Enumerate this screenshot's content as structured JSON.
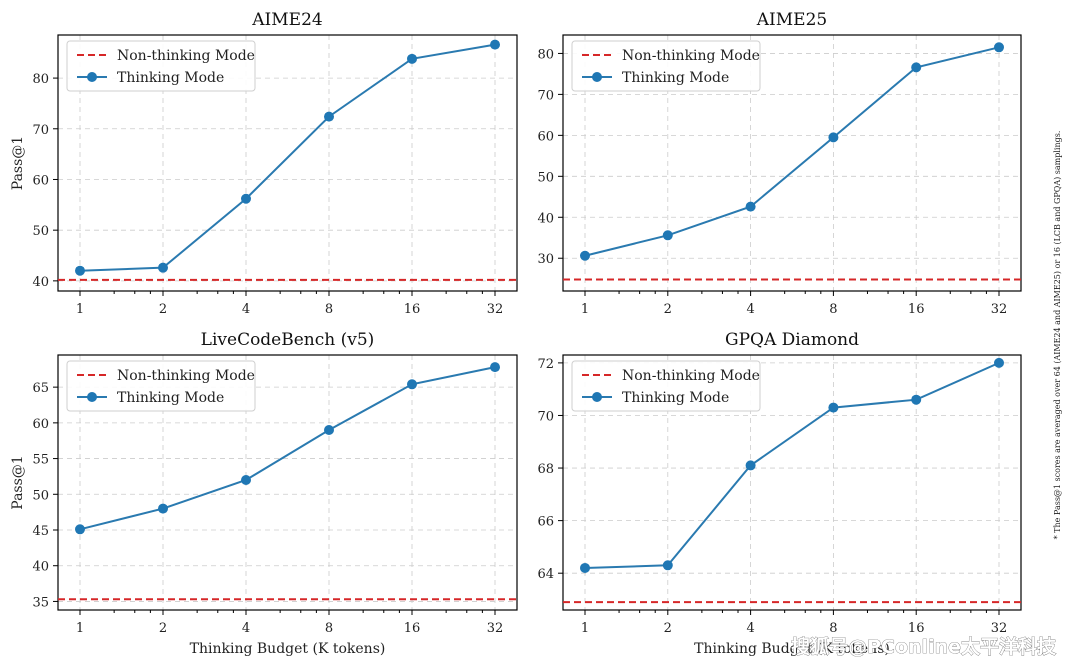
{
  "figure_note": "* The Pass@1 scores are averaged over 64 (AIME24 and AIME25) or 16 (LCB and GPQA) samplings.",
  "watermark": "搜狐号@PConline太平洋科技",
  "colors": {
    "thinking": "#1f77b4",
    "non_thinking": "#d62728"
  },
  "chart_data": [
    {
      "type": "line",
      "title": "AIME24",
      "xlabel": "",
      "ylabel": "Pass@1",
      "x_scale": "log2",
      "x": [
        1,
        2,
        4,
        8,
        16,
        32
      ],
      "x_ticks": [
        "1",
        "2",
        "4",
        "8",
        "16",
        "32"
      ],
      "ylim": [
        38,
        88.5
      ],
      "y_ticks": [
        40,
        50,
        60,
        70,
        80
      ],
      "grid": true,
      "legend_position": "top-left",
      "series": [
        {
          "name": "Thinking Mode",
          "values": [
            42.0,
            42.6,
            56.2,
            72.4,
            83.8,
            86.6
          ]
        }
      ],
      "baseline": {
        "name": "Non-thinking Mode",
        "value": 40.2
      }
    },
    {
      "type": "line",
      "title": "AIME25",
      "xlabel": "",
      "ylabel": "",
      "x_scale": "log2",
      "x": [
        1,
        2,
        4,
        8,
        16,
        32
      ],
      "x_ticks": [
        "1",
        "2",
        "4",
        "8",
        "16",
        "32"
      ],
      "ylim": [
        22,
        84.5
      ],
      "y_ticks": [
        30,
        40,
        50,
        60,
        70,
        80
      ],
      "grid": true,
      "legend_position": "top-left",
      "series": [
        {
          "name": "Thinking Mode",
          "values": [
            30.6,
            35.6,
            42.6,
            59.5,
            76.6,
            81.5
          ]
        }
      ],
      "baseline": {
        "name": "Non-thinking Mode",
        "value": 24.8
      }
    },
    {
      "type": "line",
      "title": "LiveCodeBench (v5)",
      "xlabel": "Thinking Budget (K tokens)",
      "ylabel": "Pass@1",
      "x_scale": "log2",
      "x": [
        1,
        2,
        4,
        8,
        16,
        32
      ],
      "x_ticks": [
        "1",
        "2",
        "4",
        "8",
        "16",
        "32"
      ],
      "ylim": [
        33.8,
        69.5
      ],
      "y_ticks": [
        35,
        40,
        45,
        50,
        55,
        60,
        65
      ],
      "grid": true,
      "legend_position": "top-left",
      "series": [
        {
          "name": "Thinking Mode",
          "values": [
            45.1,
            48.0,
            52.0,
            59.0,
            65.4,
            67.8
          ]
        }
      ],
      "baseline": {
        "name": "Non-thinking Mode",
        "value": 35.3
      }
    },
    {
      "type": "line",
      "title": "GPQA Diamond",
      "xlabel": "Thinking Budget (K tokens)",
      "ylabel": "",
      "x_scale": "log2",
      "x": [
        1,
        2,
        4,
        8,
        16,
        32
      ],
      "x_ticks": [
        "1",
        "2",
        "4",
        "8",
        "16",
        "32"
      ],
      "ylim": [
        62.6,
        72.3
      ],
      "y_ticks": [
        64,
        66,
        68,
        70,
        72
      ],
      "grid": true,
      "legend_position": "top-left",
      "series": [
        {
          "name": "Thinking Mode",
          "values": [
            64.2,
            64.3,
            68.1,
            70.3,
            70.6,
            72.0
          ]
        }
      ],
      "baseline": {
        "name": "Non-thinking Mode",
        "value": 62.9
      }
    }
  ]
}
